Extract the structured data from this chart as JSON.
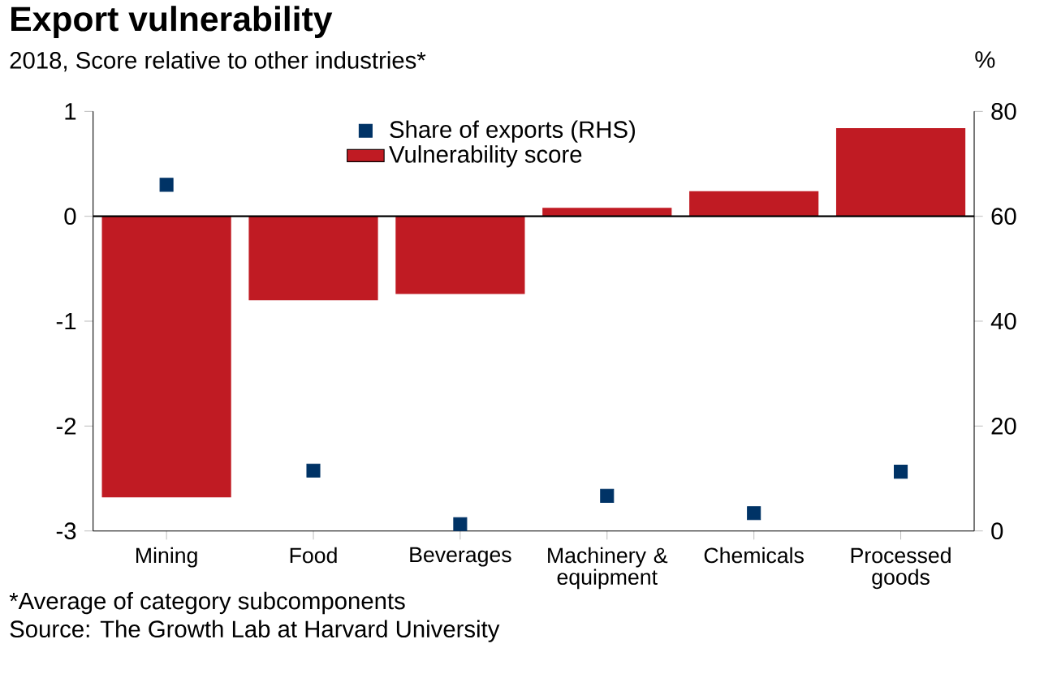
{
  "chart_data": {
    "type": "bar",
    "title": "Export vulnerability",
    "subtitle": "2018, Score relative to other industries*",
    "y2label": "%",
    "categories": [
      "Mining",
      "Food",
      "Beverages",
      "Machinery & equipment",
      "Chemicals",
      "Processed goods"
    ],
    "series": [
      {
        "name": "Vulnerability score",
        "color": "#c01b23",
        "values": [
          -2.68,
          -0.8,
          -0.74,
          0.08,
          0.24,
          0.84
        ]
      },
      {
        "name": "Share of exports (RHS)",
        "type": "scatter",
        "axis": "y2",
        "marker": "square",
        "color": "#003366",
        "values": [
          66,
          11.5,
          1.3,
          6.7,
          3.4,
          11.3
        ]
      }
    ],
    "ylim": [
      -3,
      1
    ],
    "yticks": [
      -3,
      -2,
      -1,
      0,
      1
    ],
    "y2lim": [
      0,
      80
    ],
    "y2ticks": [
      0,
      20,
      40,
      60,
      80
    ],
    "legend": "top",
    "annotations": [
      "*Average of category subcomponents",
      "Source: The Growth Lab at Harvard University"
    ]
  }
}
